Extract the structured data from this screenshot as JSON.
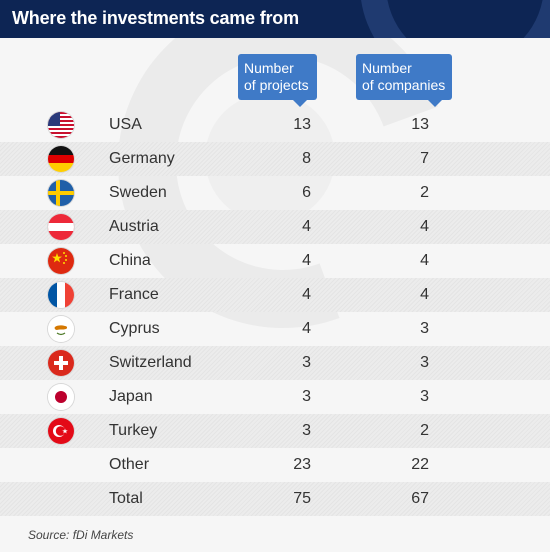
{
  "header": {
    "title": "Where the investments came from"
  },
  "columns": {
    "projects": [
      "Number",
      "of projects"
    ],
    "companies": [
      "Number",
      "of companies"
    ]
  },
  "chart_data": {
    "type": "table",
    "title": "Where the investments came from",
    "columns": [
      "Number of projects",
      "Number of companies"
    ],
    "rows": [
      {
        "country": "USA",
        "flag": "usa-flag-icon",
        "projects": "13",
        "companies": "13"
      },
      {
        "country": "Germany",
        "flag": "germany-flag-icon",
        "projects": "8",
        "companies": "7"
      },
      {
        "country": "Sweden",
        "flag": "sweden-flag-icon",
        "projects": "6",
        "companies": "2"
      },
      {
        "country": "Austria",
        "flag": "austria-flag-icon",
        "projects": "4",
        "companies": "4"
      },
      {
        "country": "China",
        "flag": "china-flag-icon",
        "projects": "4",
        "companies": "4"
      },
      {
        "country": "France",
        "flag": "france-flag-icon",
        "projects": "4",
        "companies": "4"
      },
      {
        "country": "Cyprus",
        "flag": "cyprus-flag-icon",
        "projects": "4",
        "companies": "3"
      },
      {
        "country": "Switzerland",
        "flag": "switzerland-flag-icon",
        "projects": "3",
        "companies": "3"
      },
      {
        "country": "Japan",
        "flag": "japan-flag-icon",
        "projects": "3",
        "companies": "3"
      },
      {
        "country": "Turkey",
        "flag": "turkey-flag-icon",
        "projects": "3",
        "companies": "2"
      },
      {
        "country": "Other",
        "flag": "",
        "projects": "23",
        "companies": "22"
      },
      {
        "country": "Total",
        "flag": "",
        "projects": "75",
        "companies": "67"
      }
    ]
  },
  "source": "Source: fDi Markets",
  "colors": {
    "header_bg": "#0d2554",
    "column_header_bg": "#3f7ac7",
    "row_shade": "#e8e8e8"
  }
}
